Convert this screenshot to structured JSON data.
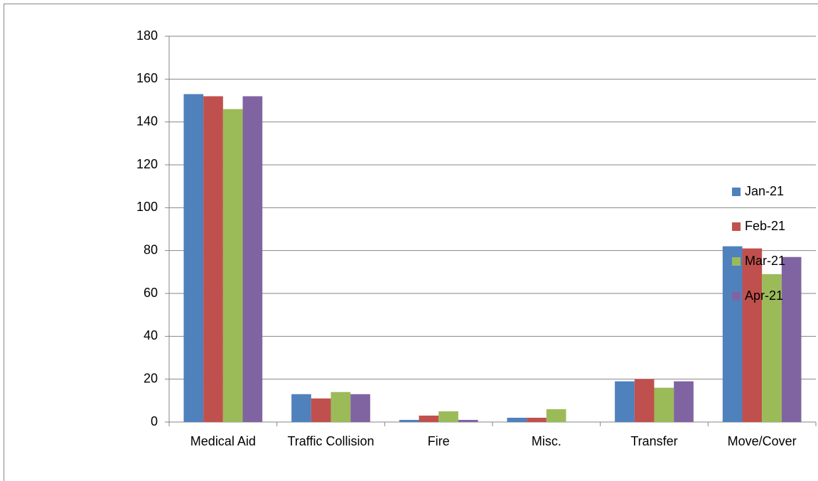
{
  "chart_data": {
    "type": "bar",
    "categories": [
      "Medical Aid",
      "Traffic Collision",
      "Fire",
      "Misc.",
      "Transfer",
      "Move/Cover"
    ],
    "series": [
      {
        "name": "Jan-21",
        "color": "#4f81bd",
        "values": [
          153,
          13,
          1,
          2,
          19,
          82
        ]
      },
      {
        "name": "Feb-21",
        "color": "#c0504d",
        "values": [
          152,
          11,
          3,
          2,
          20,
          81
        ]
      },
      {
        "name": "Mar-21",
        "color": "#9bbb59",
        "values": [
          146,
          14,
          5,
          6,
          16,
          69
        ]
      },
      {
        "name": "Apr-21",
        "color": "#8064a2",
        "values": [
          152,
          13,
          1,
          0,
          19,
          77
        ]
      }
    ],
    "ylim": [
      0,
      180
    ],
    "yticks": [
      0,
      20,
      40,
      60,
      80,
      100,
      120,
      140,
      160,
      180
    ],
    "grid": true,
    "legend": "right"
  }
}
